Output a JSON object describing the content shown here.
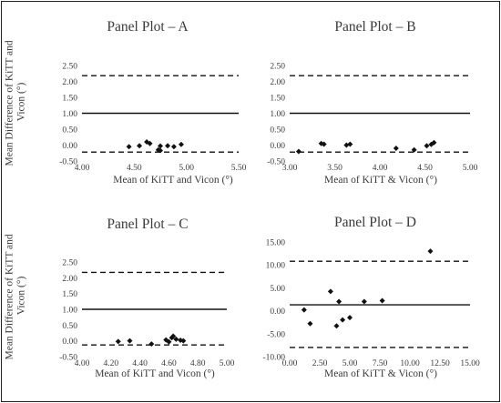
{
  "chart_data": [
    {
      "type": "scatter",
      "title": "Panel Plot – A",
      "xlabel": "Mean of KiTT and Vicon (°)",
      "ylabel": "Mean Difference of KiTT and Vicon (°)",
      "xlim": [
        4.0,
        5.5
      ],
      "ylim": [
        -0.5,
        2.5
      ],
      "xticks": [
        "4.00",
        "4.50",
        "5.00",
        "5.50"
      ],
      "yticks": [
        "-0.50",
        "0.00",
        "0.50",
        "1.00",
        "1.50",
        "2.00",
        "2.50"
      ],
      "mean_line": 1.0,
      "limits_of_agreement": [
        2.18,
        -0.22
      ],
      "points": [
        {
          "x": 4.45,
          "y": -0.05
        },
        {
          "x": 4.55,
          "y": -0.02
        },
        {
          "x": 4.62,
          "y": 0.1
        },
        {
          "x": 4.65,
          "y": 0.05
        },
        {
          "x": 4.73,
          "y": -0.15
        },
        {
          "x": 4.75,
          "y": -0.03
        },
        {
          "x": 4.75,
          "y": -0.17
        },
        {
          "x": 4.82,
          "y": -0.02
        },
        {
          "x": 4.88,
          "y": -0.05
        },
        {
          "x": 4.95,
          "y": 0.02
        }
      ]
    },
    {
      "type": "scatter",
      "title": "Panel Plot – B",
      "xlabel": "Mean of KiTT & Vicon (°)",
      "ylabel": "",
      "xlim": [
        3.0,
        5.0
      ],
      "ylim": [
        -0.5,
        2.5
      ],
      "xticks": [
        "3.00",
        "3.50",
        "4.00",
        "4.50",
        "5.00"
      ],
      "yticks": [
        "-0.50",
        "0.00",
        "0.50",
        "1.00",
        "1.50",
        "2.00",
        "2.50"
      ],
      "mean_line": 1.0,
      "limits_of_agreement": [
        2.18,
        -0.22
      ],
      "points": [
        {
          "x": 3.1,
          "y": -0.2
        },
        {
          "x": 3.35,
          "y": 0.05
        },
        {
          "x": 3.38,
          "y": 0.03
        },
        {
          "x": 3.63,
          "y": 0.0
        },
        {
          "x": 3.67,
          "y": 0.03
        },
        {
          "x": 4.18,
          "y": -0.1
        },
        {
          "x": 4.38,
          "y": -0.15
        },
        {
          "x": 4.52,
          "y": -0.02
        },
        {
          "x": 4.57,
          "y": 0.02
        },
        {
          "x": 4.6,
          "y": 0.08
        }
      ]
    },
    {
      "type": "scatter",
      "title": "Panel Plot – C",
      "xlabel": "Mean of KiTT and Vicon (°)",
      "ylabel": "Mean Difference of KiTT and Vicon (°)",
      "xlim": [
        4.0,
        5.0
      ],
      "ylim": [
        -0.5,
        2.5
      ],
      "xticks": [
        "4.00",
        "4.20",
        "4.40",
        "4.60",
        "4.80",
        "5.00"
      ],
      "yticks": [
        "-0.50",
        "0.00",
        "0.50",
        "1.00",
        "1.50",
        "2.00",
        "2.50"
      ],
      "mean_line": 1.0,
      "limits_of_agreement": [
        2.17,
        -0.13
      ],
      "points": [
        {
          "x": 4.25,
          "y": -0.02
        },
        {
          "x": 4.33,
          "y": 0.0
        },
        {
          "x": 4.48,
          "y": -0.1
        },
        {
          "x": 4.58,
          "y": 0.03
        },
        {
          "x": 4.6,
          "y": -0.03
        },
        {
          "x": 4.62,
          "y": 0.1
        },
        {
          "x": 4.63,
          "y": 0.15
        },
        {
          "x": 4.65,
          "y": 0.05
        },
        {
          "x": 4.68,
          "y": 0.02
        },
        {
          "x": 4.7,
          "y": 0.0
        }
      ]
    },
    {
      "type": "scatter",
      "title": "Panel Plot – D",
      "xlabel": "Mean of KiTT & Vicon (°)",
      "ylabel": "",
      "xlim": [
        0.0,
        15.0
      ],
      "ylim": [
        -10.0,
        15.0
      ],
      "xticks": [
        "0.00",
        "2.50",
        "5.00",
        "7.50",
        "10.00",
        "12.50",
        "15.00"
      ],
      "yticks": [
        "-10.00",
        "-5.00",
        "0.00",
        "5.00",
        "10.00",
        "15.00"
      ],
      "mean_line": 1.3,
      "limits_of_agreement": [
        10.8,
        -8.0
      ],
      "points": [
        {
          "x": 1.2,
          "y": 0.2
        },
        {
          "x": 1.7,
          "y": -2.8
        },
        {
          "x": 3.4,
          "y": 4.2
        },
        {
          "x": 3.9,
          "y": -3.3
        },
        {
          "x": 4.1,
          "y": 2.0
        },
        {
          "x": 4.4,
          "y": -2.0
        },
        {
          "x": 5.0,
          "y": -1.5
        },
        {
          "x": 6.2,
          "y": 2.0
        },
        {
          "x": 7.7,
          "y": 2.2
        },
        {
          "x": 11.7,
          "y": 13.0
        }
      ]
    }
  ]
}
